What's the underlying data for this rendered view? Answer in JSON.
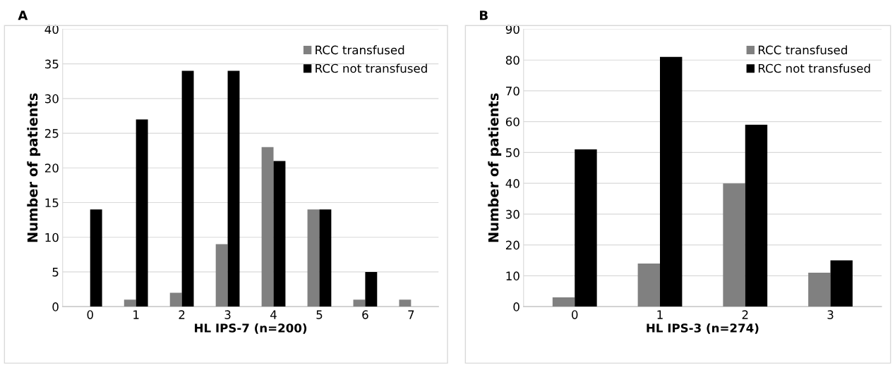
{
  "chart_data": [
    {
      "type": "bar",
      "title": "A",
      "categories": [
        "0",
        "1",
        "2",
        "3",
        "4",
        "5",
        "6",
        "7"
      ],
      "xlabel": "HL IPS-7 (n=200)",
      "ylabel": "Number of patients",
      "series": [
        {
          "name": "RCC transfused",
          "color": "#808080",
          "values": [
            0,
            1,
            2,
            9,
            23,
            14,
            1,
            1
          ]
        },
        {
          "name": "RCC not transfused",
          "color": "#000000",
          "values": [
            14,
            27,
            34,
            34,
            21,
            14,
            5,
            0
          ]
        }
      ],
      "ylim": [
        0,
        40
      ],
      "yticks": [
        0,
        5,
        10,
        15,
        20,
        25,
        30,
        35,
        40
      ],
      "grid": "y",
      "legend": "top right"
    },
    {
      "type": "bar",
      "title": "B",
      "categories": [
        "0",
        "1",
        "2",
        "3"
      ],
      "xlabel": "HL IPS-3 (n=274)",
      "ylabel": "Number of patients",
      "series": [
        {
          "name": "RCC transfused",
          "color": "#808080",
          "values": [
            3,
            14,
            40,
            11
          ]
        },
        {
          "name": "RCC not transfused",
          "color": "#000000",
          "values": [
            51,
            81,
            59,
            15
          ]
        }
      ],
      "ylim": [
        0,
        90
      ],
      "yticks": [
        0,
        10,
        20,
        30,
        40,
        50,
        60,
        70,
        80,
        90
      ],
      "grid": "y",
      "legend": "top right"
    }
  ]
}
